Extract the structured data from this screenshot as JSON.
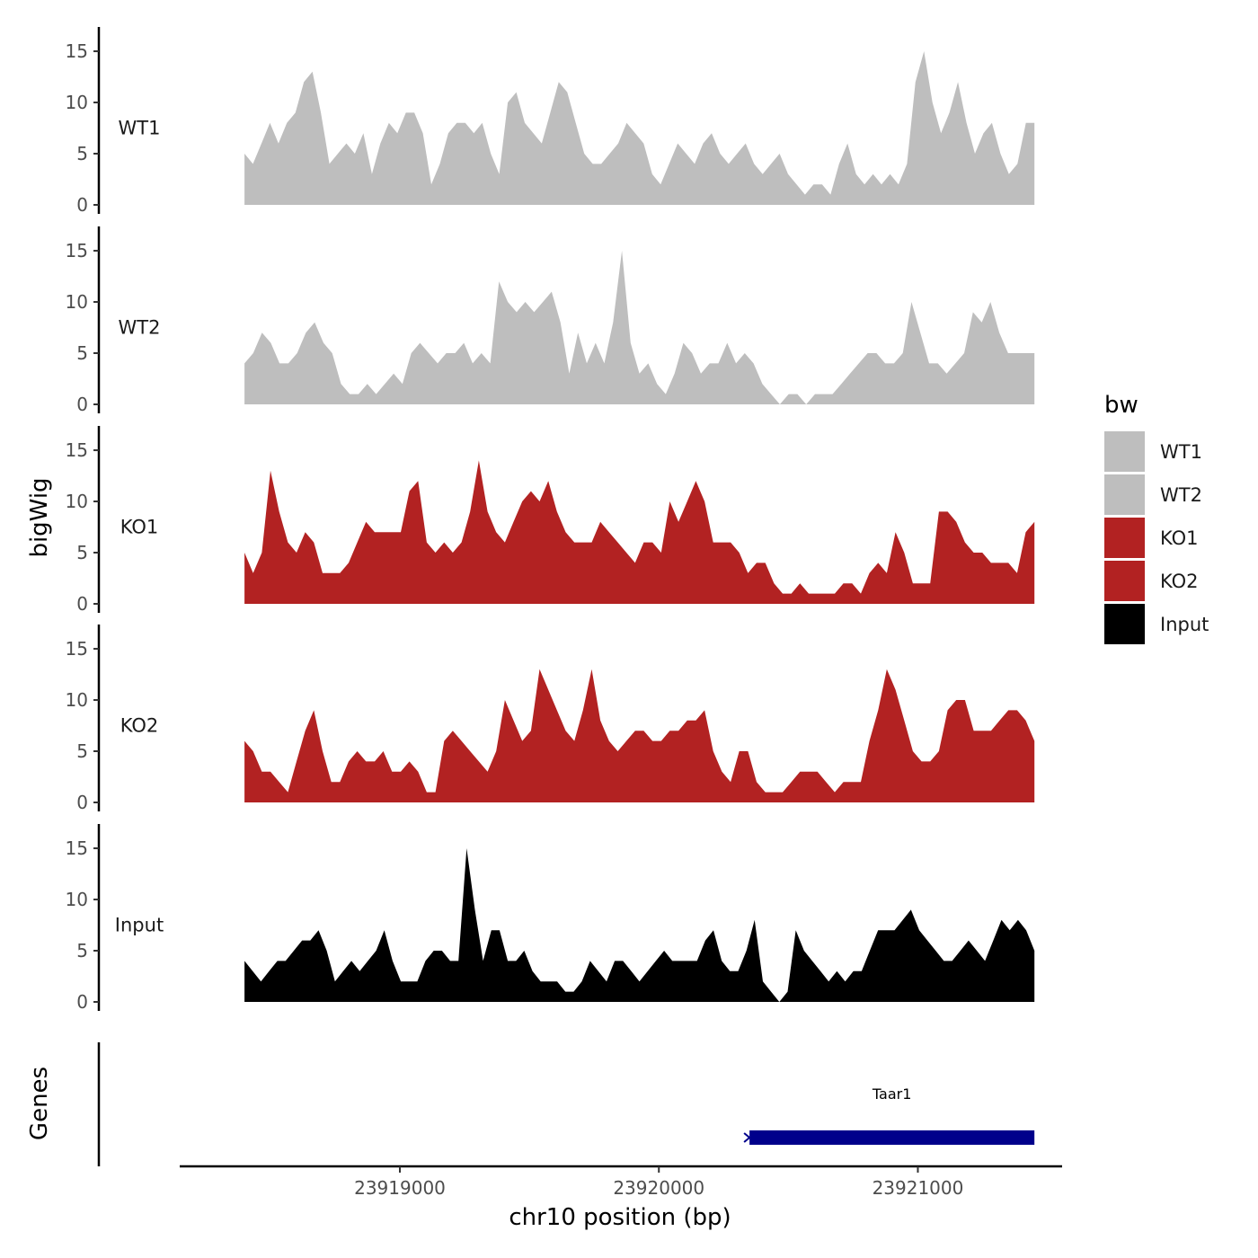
{
  "chart_data": {
    "type": "area",
    "ylabel": "bigWig",
    "xlabel": "chr10 position (bp)",
    "y_ticks": [
      "0",
      "5",
      "10",
      "15"
    ],
    "y_tick_values": [
      0,
      5,
      10,
      15
    ],
    "ylim": [
      0,
      16
    ],
    "xlim": [
      23918150,
      23921550
    ],
    "x_ticks": [
      "23919000",
      "23920000",
      "23921000"
    ],
    "x_tick_values": [
      23919000,
      23920000,
      23921000
    ],
    "x_start": 23918400,
    "x_end": 23921450,
    "legend": {
      "title": "bw",
      "placement": "right",
      "entries": [
        {
          "label": "WT1",
          "color": "#bebebe"
        },
        {
          "label": "WT2",
          "color": "#bebebe"
        },
        {
          "label": "KO1",
          "color": "#b22222"
        },
        {
          "label": "KO2",
          "color": "#b22222"
        },
        {
          "label": "Input",
          "color": "#000000"
        }
      ]
    },
    "series": [
      {
        "name": "WT1",
        "color": "#bebebe",
        "values": [
          5,
          4,
          6,
          8,
          6,
          8,
          9,
          12,
          13,
          9,
          4,
          5,
          6,
          5,
          7,
          3,
          6,
          8,
          7,
          9,
          9,
          7,
          2,
          4,
          7,
          8,
          8,
          7,
          8,
          5,
          3,
          10,
          11,
          8,
          7,
          6,
          9,
          12,
          11,
          8,
          5,
          4,
          4,
          5,
          6,
          8,
          7,
          6,
          3,
          2,
          4,
          6,
          5,
          4,
          6,
          7,
          5,
          4,
          5,
          6,
          4,
          3,
          4,
          5,
          3,
          2,
          1,
          2,
          2,
          1,
          4,
          6,
          3,
          2,
          3,
          2,
          3,
          2,
          4,
          12,
          15,
          10,
          7,
          9,
          12,
          8,
          5,
          7,
          8,
          5,
          3,
          4,
          8,
          8
        ]
      },
      {
        "name": "WT2",
        "color": "#bebebe",
        "values": [
          4,
          5,
          7,
          6,
          4,
          4,
          5,
          7,
          8,
          6,
          5,
          2,
          1,
          1,
          2,
          1,
          2,
          3,
          2,
          5,
          6,
          5,
          4,
          5,
          5,
          6,
          4,
          5,
          4,
          12,
          10,
          9,
          10,
          9,
          10,
          11,
          8,
          3,
          7,
          4,
          6,
          4,
          8,
          15,
          6,
          3,
          4,
          2,
          1,
          3,
          6,
          5,
          3,
          4,
          4,
          6,
          4,
          5,
          4,
          2,
          1,
          0,
          1,
          1,
          0,
          1,
          1,
          1,
          2,
          3,
          4,
          5,
          5,
          4,
          4,
          5,
          10,
          7,
          4,
          4,
          3,
          4,
          5,
          9,
          8,
          10,
          7,
          5,
          5,
          5,
          5
        ]
      },
      {
        "name": "KO1",
        "color": "#b22222",
        "values": [
          5,
          3,
          5,
          13,
          9,
          6,
          5,
          7,
          6,
          3,
          3,
          3,
          4,
          6,
          8,
          7,
          7,
          7,
          7,
          11,
          12,
          6,
          5,
          6,
          5,
          6,
          9,
          14,
          9,
          7,
          6,
          8,
          10,
          11,
          10,
          12,
          9,
          7,
          6,
          6,
          6,
          8,
          7,
          6,
          5,
          4,
          6,
          6,
          5,
          10,
          8,
          10,
          12,
          10,
          6,
          6,
          6,
          5,
          3,
          4,
          4,
          2,
          1,
          1,
          2,
          1,
          1,
          1,
          1,
          2,
          2,
          1,
          3,
          4,
          3,
          7,
          5,
          2,
          2,
          2,
          9,
          9,
          8,
          6,
          5,
          5,
          4,
          4,
          4,
          3,
          7,
          8
        ]
      },
      {
        "name": "KO2",
        "color": "#b22222",
        "values": [
          6,
          5,
          3,
          3,
          2,
          1,
          4,
          7,
          9,
          5,
          2,
          2,
          4,
          5,
          4,
          4,
          5,
          3,
          3,
          4,
          3,
          1,
          1,
          6,
          7,
          6,
          5,
          4,
          3,
          5,
          10,
          8,
          6,
          7,
          13,
          11,
          9,
          7,
          6,
          9,
          13,
          8,
          6,
          5,
          6,
          7,
          7,
          6,
          6,
          7,
          7,
          8,
          8,
          9,
          5,
          3,
          2,
          5,
          5,
          2,
          1,
          1,
          1,
          2,
          3,
          3,
          3,
          2,
          1,
          2,
          2,
          2,
          6,
          9,
          13,
          11,
          8,
          5,
          4,
          4,
          5,
          9,
          10,
          10,
          7,
          7,
          7,
          8,
          9,
          9,
          8,
          6
        ]
      },
      {
        "name": "Input",
        "color": "#000000",
        "values": [
          4,
          3,
          2,
          3,
          4,
          4,
          5,
          6,
          6,
          7,
          5,
          2,
          3,
          4,
          3,
          4,
          5,
          7,
          4,
          2,
          2,
          2,
          4,
          5,
          5,
          4,
          4,
          15,
          9,
          4,
          7,
          7,
          4,
          4,
          5,
          3,
          2,
          2,
          2,
          1,
          1,
          2,
          4,
          3,
          2,
          4,
          4,
          3,
          2,
          3,
          4,
          5,
          4,
          4,
          4,
          4,
          6,
          7,
          4,
          3,
          3,
          5,
          8,
          2,
          1,
          0,
          1,
          7,
          5,
          4,
          3,
          2,
          3,
          2,
          3,
          3,
          5,
          7,
          7,
          7,
          8,
          9,
          7,
          6,
          5,
          4,
          4,
          5,
          6,
          5,
          4,
          6,
          8,
          7,
          8,
          7,
          5
        ]
      }
    ],
    "genes_panel": {
      "title": "Genes",
      "genes": [
        {
          "name": "Taar1",
          "start": 23920350,
          "end": 23921450,
          "color": "#00008b"
        }
      ]
    }
  }
}
